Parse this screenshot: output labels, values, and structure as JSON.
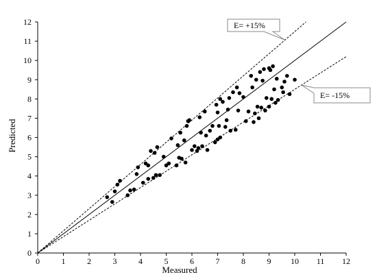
{
  "chart_data": {
    "type": "scatter",
    "title": "",
    "xlabel": "Measured",
    "ylabel": "Predicted",
    "xlim": [
      0,
      12
    ],
    "ylim": [
      0,
      12
    ],
    "xticks": [
      "0",
      "1",
      "2",
      "3",
      "4",
      "5",
      "6",
      "7",
      "8",
      "9",
      "10",
      "11",
      "12"
    ],
    "yticks": [
      "0",
      "1",
      "2",
      "3",
      "4",
      "5",
      "6",
      "7",
      "8",
      "9",
      "10",
      "11",
      "12"
    ],
    "grid": false,
    "reference_lines": [
      {
        "label": "",
        "slope": 1.0,
        "style": "solid"
      },
      {
        "label": "E= +15%",
        "slope": 1.15,
        "style": "dashed"
      },
      {
        "label": "E= -15%",
        "slope": 0.85,
        "style": "dashed"
      }
    ],
    "points": [
      [
        2.7,
        2.9
      ],
      [
        2.9,
        2.65
      ],
      [
        3.0,
        3.2
      ],
      [
        3.1,
        3.55
      ],
      [
        3.2,
        3.75
      ],
      [
        3.5,
        3.0
      ],
      [
        3.6,
        3.25
      ],
      [
        3.75,
        3.3
      ],
      [
        3.85,
        4.1
      ],
      [
        3.9,
        4.45
      ],
      [
        4.1,
        3.65
      ],
      [
        4.2,
        4.65
      ],
      [
        4.3,
        3.85
      ],
      [
        4.3,
        4.55
      ],
      [
        4.4,
        5.3
      ],
      [
        4.5,
        3.9
      ],
      [
        4.55,
        5.2
      ],
      [
        4.6,
        4.05
      ],
      [
        4.65,
        5.5
      ],
      [
        4.75,
        4.05
      ],
      [
        4.9,
        5.0
      ],
      [
        5.0,
        4.55
      ],
      [
        5.1,
        4.65
      ],
      [
        5.2,
        5.95
      ],
      [
        5.4,
        4.55
      ],
      [
        5.45,
        5.6
      ],
      [
        5.5,
        4.95
      ],
      [
        5.55,
        6.25
      ],
      [
        5.6,
        4.9
      ],
      [
        5.7,
        5.85
      ],
      [
        5.75,
        4.7
      ],
      [
        5.8,
        6.6
      ],
      [
        5.85,
        6.85
      ],
      [
        5.9,
        6.9
      ],
      [
        6.0,
        5.35
      ],
      [
        6.1,
        5.55
      ],
      [
        6.2,
        5.3
      ],
      [
        6.25,
        5.45
      ],
      [
        6.3,
        7.05
      ],
      [
        6.35,
        6.25
      ],
      [
        6.4,
        5.55
      ],
      [
        6.5,
        7.35
      ],
      [
        6.55,
        6.1
      ],
      [
        6.6,
        5.35
      ],
      [
        6.7,
        6.35
      ],
      [
        6.8,
        6.6
      ],
      [
        6.9,
        5.75
      ],
      [
        6.95,
        7.7
      ],
      [
        7.0,
        5.9
      ],
      [
        7.0,
        7.3
      ],
      [
        7.05,
        6.6
      ],
      [
        7.1,
        6.0
      ],
      [
        7.1,
        8.0
      ],
      [
        7.2,
        7.85
      ],
      [
        7.3,
        6.55
      ],
      [
        7.35,
        6.9
      ],
      [
        7.4,
        7.45
      ],
      [
        7.45,
        8.05
      ],
      [
        7.5,
        6.35
      ],
      [
        7.6,
        8.35
      ],
      [
        7.7,
        6.4
      ],
      [
        7.75,
        8.6
      ],
      [
        7.8,
        7.4
      ],
      [
        7.85,
        8.3
      ],
      [
        8.0,
        8.1
      ],
      [
        8.1,
        6.85
      ],
      [
        8.2,
        7.35
      ],
      [
        8.3,
        9.2
      ],
      [
        8.35,
        8.6
      ],
      [
        8.4,
        6.8
      ],
      [
        8.45,
        7.25
      ],
      [
        8.5,
        9.0
      ],
      [
        8.55,
        7.6
      ],
      [
        8.6,
        7.0
      ],
      [
        8.65,
        9.4
      ],
      [
        8.7,
        7.55
      ],
      [
        8.75,
        8.95
      ],
      [
        8.8,
        9.55
      ],
      [
        8.85,
        7.4
      ],
      [
        8.9,
        8.05
      ],
      [
        9.0,
        9.6
      ],
      [
        9.0,
        7.6
      ],
      [
        9.05,
        9.5
      ],
      [
        9.1,
        8.0
      ],
      [
        9.15,
        9.7
      ],
      [
        9.2,
        8.5
      ],
      [
        9.25,
        7.8
      ],
      [
        9.3,
        9.05
      ],
      [
        9.35,
        7.95
      ],
      [
        9.5,
        8.6
      ],
      [
        9.55,
        8.35
      ],
      [
        9.6,
        8.9
      ],
      [
        9.7,
        9.2
      ],
      [
        9.8,
        8.25
      ],
      [
        10.0,
        9.0
      ]
    ]
  }
}
